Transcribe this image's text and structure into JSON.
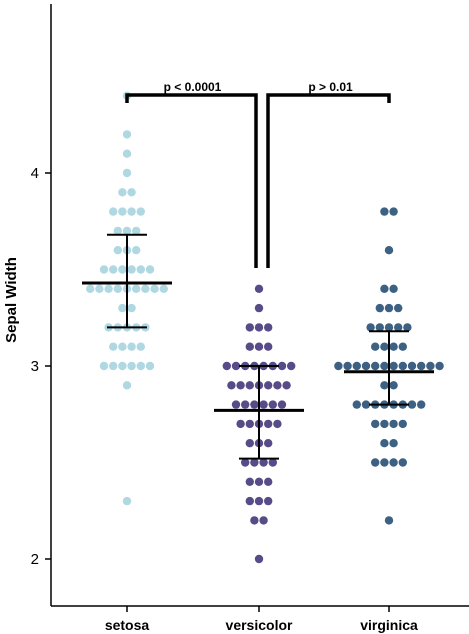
{
  "chart_data": {
    "type": "scatter",
    "ylabel": "Sepal Width",
    "xlabel": "",
    "ylim": [
      1.75,
      4.85
    ],
    "yticks": [
      2,
      3,
      4
    ],
    "ytick_labels": [
      "2",
      "3",
      "4"
    ],
    "categories": [
      "setosa",
      "versicolor",
      "virginica"
    ],
    "colors": {
      "setosa": "#a8d5e0",
      "versicolor": "#4a3d7e",
      "virginica": "#2c5478",
      "axis": "#000000"
    },
    "series": [
      {
        "name": "setosa",
        "mean": 3.43,
        "sd_upper": 3.68,
        "sd_lower": 3.2,
        "values": [
          3.5,
          3.0,
          3.2,
          3.1,
          3.6,
          3.9,
          3.4,
          3.4,
          2.9,
          3.1,
          3.7,
          3.4,
          3.0,
          3.0,
          4.0,
          4.4,
          3.9,
          3.5,
          3.8,
          3.8,
          3.4,
          3.7,
          3.6,
          3.3,
          3.4,
          3.0,
          3.4,
          3.5,
          3.4,
          3.2,
          3.1,
          3.4,
          4.1,
          4.2,
          3.1,
          3.2,
          3.5,
          3.6,
          3.0,
          3.4,
          3.5,
          2.3,
          3.2,
          3.5,
          3.8,
          3.0,
          3.8,
          3.2,
          3.7,
          3.3
        ]
      },
      {
        "name": "versicolor",
        "mean": 2.77,
        "sd_upper": 3.0,
        "sd_lower": 2.52,
        "values": [
          3.2,
          3.2,
          3.1,
          2.3,
          2.8,
          2.8,
          3.3,
          2.4,
          2.9,
          2.7,
          2.0,
          3.0,
          2.2,
          2.9,
          2.9,
          3.1,
          3.0,
          2.7,
          2.2,
          2.5,
          3.2,
          2.8,
          2.5,
          2.8,
          2.9,
          3.0,
          2.8,
          3.0,
          2.9,
          2.6,
          2.4,
          2.4,
          2.7,
          2.7,
          3.0,
          3.4,
          3.1,
          2.3,
          3.0,
          2.5,
          2.6,
          3.0,
          2.6,
          2.3,
          2.7,
          3.0,
          2.9,
          2.9,
          2.5,
          2.8
        ]
      },
      {
        "name": "virginica",
        "mean": 2.97,
        "sd_upper": 3.18,
        "sd_lower": 2.8,
        "values": [
          3.3,
          2.7,
          3.0,
          2.9,
          3.0,
          3.0,
          2.5,
          2.9,
          2.5,
          3.6,
          3.2,
          2.7,
          3.0,
          2.5,
          2.8,
          3.2,
          3.0,
          3.8,
          2.6,
          2.2,
          3.2,
          2.8,
          2.8,
          2.7,
          3.3,
          3.2,
          2.8,
          3.0,
          2.8,
          3.0,
          2.8,
          3.8,
          2.8,
          2.8,
          2.6,
          3.0,
          3.4,
          3.1,
          3.0,
          3.1,
          3.1,
          3.1,
          2.7,
          3.2,
          3.3,
          3.0,
          2.5,
          3.0,
          3.4,
          3.0
        ]
      }
    ],
    "significance": [
      {
        "from": "setosa",
        "to": "versicolor",
        "label": "p < 0.0001"
      },
      {
        "from": "versicolor",
        "to": "virginica",
        "label": "p > 0.01"
      }
    ],
    "grid": false,
    "legend": "none"
  }
}
